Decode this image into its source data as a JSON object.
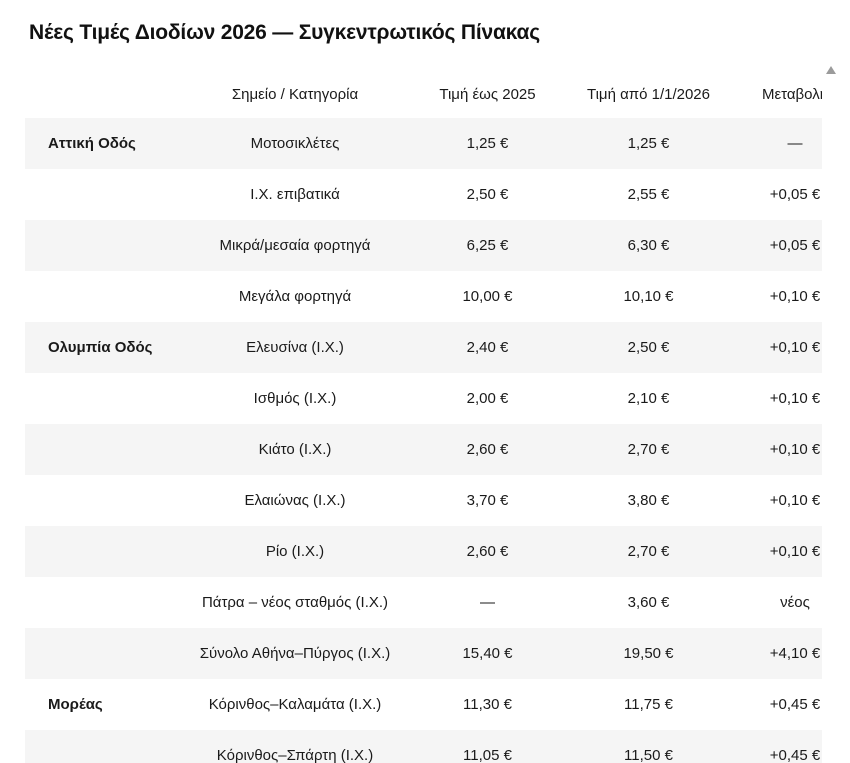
{
  "title": "Νέες Τιμές Διοδίων 2026 — Συγκεντρωτικός Πίνακας",
  "table": {
    "headers": {
      "road": "",
      "category": "Σημείο / Κατηγορία",
      "price_2025": "Τιμή έως 2025",
      "price_2026": "Τιμή από 1/1/2026",
      "change": "Μεταβολή"
    },
    "rows": [
      {
        "road": "Αττική Οδός",
        "category": "Μοτοσικλέτες",
        "price_2025": "1,25 €",
        "price_2026": "1,25 €",
        "change": "—"
      },
      {
        "road": "",
        "category": "Ι.Χ. επιβατικά",
        "price_2025": "2,50 €",
        "price_2026": "2,55 €",
        "change": "+0,05 €"
      },
      {
        "road": "",
        "category": "Μικρά/μεσαία φορτηγά",
        "price_2025": "6,25 €",
        "price_2026": "6,30 €",
        "change": "+0,05 €"
      },
      {
        "road": "",
        "category": "Μεγάλα φορτηγά",
        "price_2025": "10,00 €",
        "price_2026": "10,10 €",
        "change": "+0,10 €"
      },
      {
        "road": "Ολυμπία Οδός",
        "category": "Ελευσίνα (Ι.Χ.)",
        "price_2025": "2,40 €",
        "price_2026": "2,50 €",
        "change": "+0,10 €"
      },
      {
        "road": "",
        "category": "Ισθμός (Ι.Χ.)",
        "price_2025": "2,00 €",
        "price_2026": "2,10 €",
        "change": "+0,10 €"
      },
      {
        "road": "",
        "category": "Κιάτο (Ι.Χ.)",
        "price_2025": "2,60 €",
        "price_2026": "2,70 €",
        "change": "+0,10 €"
      },
      {
        "road": "",
        "category": "Ελαιώνας (Ι.Χ.)",
        "price_2025": "3,70 €",
        "price_2026": "3,80 €",
        "change": "+0,10 €"
      },
      {
        "road": "",
        "category": "Ρίο (Ι.Χ.)",
        "price_2025": "2,60 €",
        "price_2026": "2,70 €",
        "change": "+0,10 €"
      },
      {
        "road": "",
        "category": "Πάτρα – νέος σταθμός (Ι.Χ.)",
        "price_2025": "—",
        "price_2026": "3,60 €",
        "change": "νέος"
      },
      {
        "road": "",
        "category": "Σύνολο Αθήνα–Πύργος (Ι.Χ.)",
        "price_2025": "15,40 €",
        "price_2026": "19,50 €",
        "change": "+4,10 €"
      },
      {
        "road": "Μορέας",
        "category": "Κόρινθος–Καλαμάτα (Ι.Χ.)",
        "price_2025": "11,30 €",
        "price_2026": "11,75 €",
        "change": "+0,45 €"
      },
      {
        "road": "",
        "category": "Κόρινθος–Σπάρτη (Ι.Χ.)",
        "price_2025": "11,05 €",
        "price_2026": "11,50 €",
        "change": "+0,45 €"
      }
    ]
  },
  "colors": {
    "row_alt_bg": "#f5f5f5",
    "text": "#1a1a1a",
    "scroll_arrow": "#9b9b9b"
  }
}
